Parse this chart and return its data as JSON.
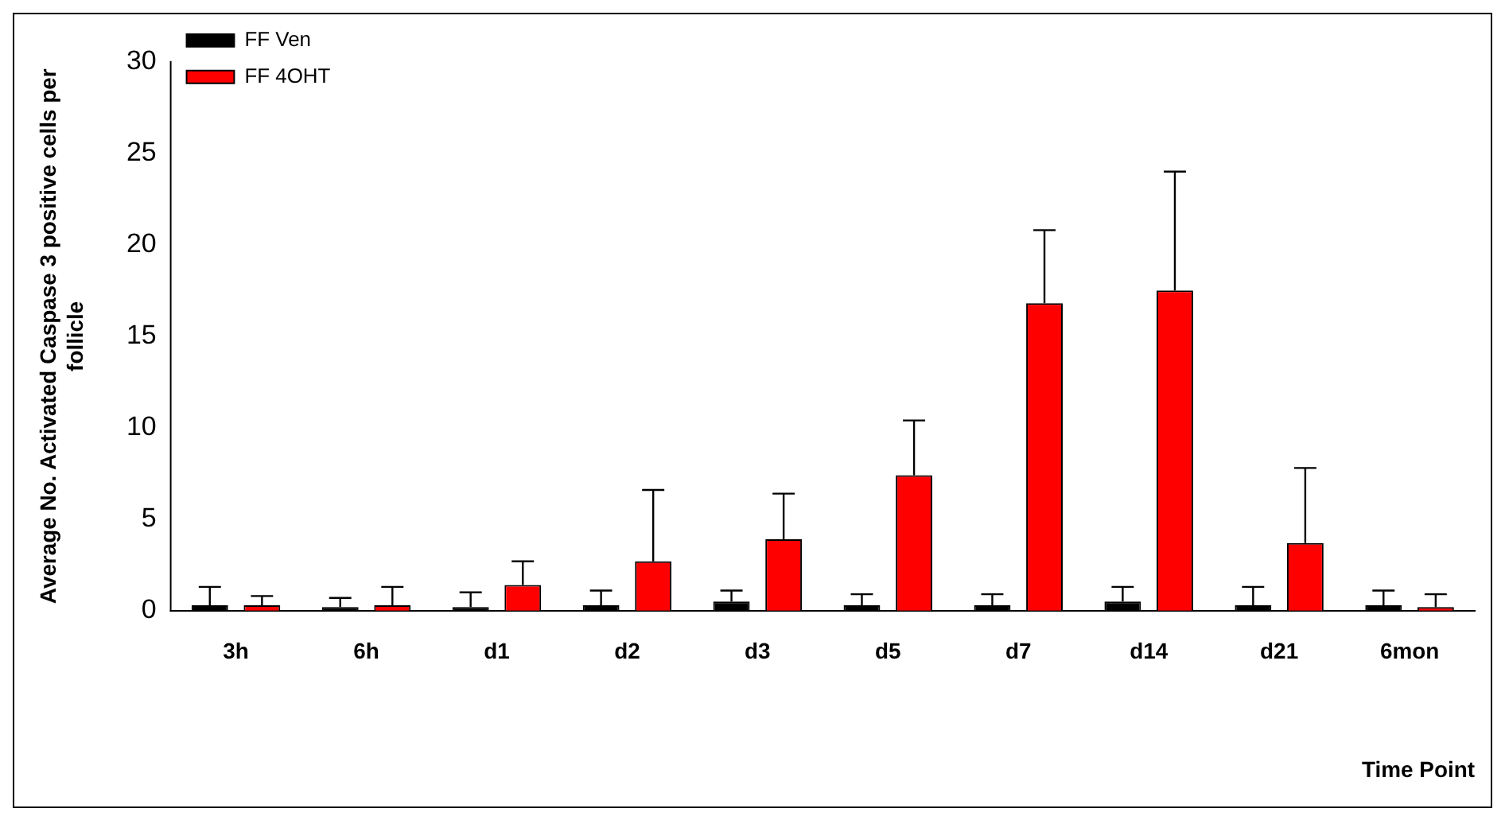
{
  "chart_data": {
    "type": "bar",
    "xlabel": "Time Point",
    "ylabel": "Average No. Activated Caspase 3 positive cells per follicle",
    "categories": [
      "3h",
      "6h",
      "d1",
      "d2",
      "d3",
      "d5",
      "d7",
      "d14",
      "d21",
      "6mon"
    ],
    "series": [
      {
        "name": "FF Ven",
        "color": "#000000",
        "values": [
          0.3,
          0.2,
          0.2,
          0.3,
          0.5,
          0.3,
          0.3,
          0.5,
          0.3,
          0.3
        ],
        "errors": [
          [
            0.3,
            1.3
          ],
          [
            0.2,
            0.7
          ],
          [
            0.2,
            1.0
          ],
          [
            0.3,
            1.1
          ],
          [
            0.5,
            1.1
          ],
          [
            0.3,
            0.9
          ],
          [
            0.3,
            0.9
          ],
          [
            0.5,
            1.3
          ],
          [
            0.3,
            1.3
          ],
          [
            0.3,
            1.1
          ]
        ]
      },
      {
        "name": "FF 4OHT",
        "color": "#ff0000",
        "values": [
          0.3,
          0.3,
          1.4,
          2.7,
          3.9,
          7.4,
          16.8,
          17.5,
          3.7,
          0.2
        ],
        "errors": [
          [
            0.3,
            0.8
          ],
          [
            0.3,
            1.3
          ],
          [
            1.4,
            2.7
          ],
          [
            2.7,
            6.6
          ],
          [
            3.9,
            6.4
          ],
          [
            7.4,
            10.4
          ],
          [
            16.8,
            20.8
          ],
          [
            17.5,
            24.0
          ],
          [
            3.7,
            7.8
          ],
          [
            0.2,
            0.9
          ]
        ]
      }
    ],
    "ylim": [
      0,
      30
    ],
    "yticks": [
      0,
      5,
      10,
      15,
      20,
      25,
      30
    ],
    "grid": false,
    "legend": "top left"
  }
}
